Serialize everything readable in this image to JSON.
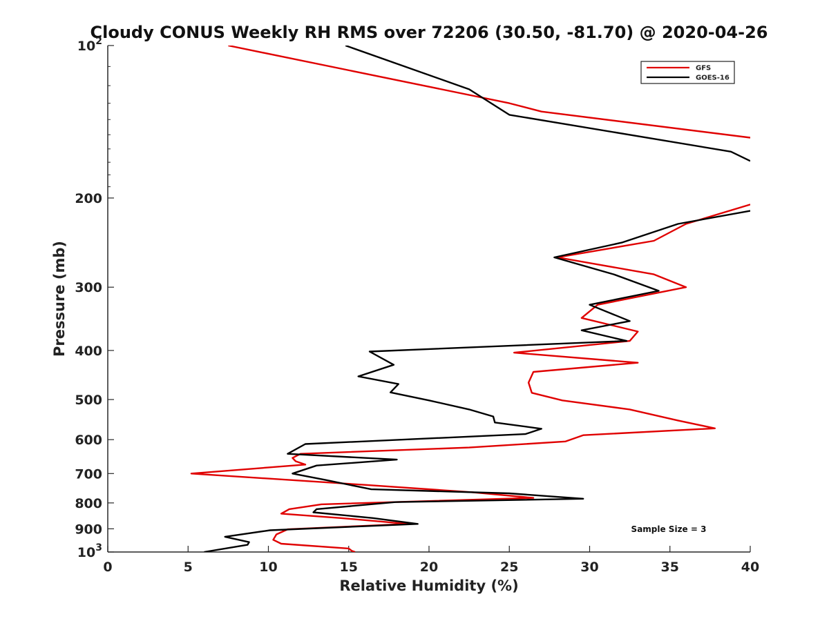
{
  "chart_data": {
    "type": "line",
    "title": "Cloudy CONUS Weekly RH RMS over 72206 (30.50, -81.70) @ 2020-04-26",
    "xlabel": "Relative Humidity (%)",
    "ylabel": "Pressure (mb)",
    "xlim": [
      0,
      40
    ],
    "ylim": [
      1000,
      100
    ],
    "yscale": "log",
    "x_ticks": [
      0,
      5,
      10,
      15,
      20,
      25,
      30,
      35,
      40
    ],
    "x_tick_labels": [
      "0",
      "5",
      "10",
      "15",
      "20",
      "25",
      "30",
      "35",
      "40"
    ],
    "y_ticks": [
      {
        "value": 100,
        "base": "10",
        "exp": "2"
      },
      {
        "value": 200,
        "label": "200"
      },
      {
        "value": 300,
        "label": "300"
      },
      {
        "value": 400,
        "label": "400"
      },
      {
        "value": 500,
        "label": "500"
      },
      {
        "value": 600,
        "label": "600"
      },
      {
        "value": 700,
        "label": "700"
      },
      {
        "value": 800,
        "label": "800"
      },
      {
        "value": 900,
        "label": "900"
      },
      {
        "value": 1000,
        "base": "10",
        "exp": "3"
      }
    ],
    "legend": {
      "position": "top-right"
    },
    "annotation": "Sample Size = 3",
    "series": [
      {
        "name": "GFS",
        "color": "#e00000",
        "points": [
          [
            7.5,
            100
          ],
          [
            25,
            130
          ],
          [
            27,
            135
          ],
          [
            40,
            152
          ],
          [
            null,
            152
          ],
          [
            40,
            206
          ],
          [
            36,
            225
          ],
          [
            34,
            243
          ],
          [
            28,
            262
          ],
          [
            34,
            283
          ],
          [
            36,
            300
          ],
          [
            30.5,
            325
          ],
          [
            29.5,
            345
          ],
          [
            33,
            367
          ],
          [
            32.5,
            383
          ],
          [
            25.3,
            404
          ],
          [
            33,
            423
          ],
          [
            26.5,
            441
          ],
          [
            26.2,
            463
          ],
          [
            26.4,
            485
          ],
          [
            28.3,
            502
          ],
          [
            32.5,
            523
          ],
          [
            35.5,
            550
          ],
          [
            37.8,
            570
          ],
          [
            29.6,
            588
          ],
          [
            28.5,
            605
          ],
          [
            22.5,
            622
          ],
          [
            12,
            640
          ],
          [
            11.5,
            652
          ],
          [
            11.7,
            662
          ],
          [
            12.3,
            672
          ],
          [
            5.2,
            700
          ],
          [
            16,
            737
          ],
          [
            22.7,
            762
          ],
          [
            26.5,
            782
          ],
          [
            13.3,
            805
          ],
          [
            11.3,
            823
          ],
          [
            10.8,
            840
          ],
          [
            14.5,
            857
          ],
          [
            18.7,
            880
          ],
          [
            11.2,
            902
          ],
          [
            10.5,
            923
          ],
          [
            10.3,
            946
          ],
          [
            10.8,
            963
          ],
          [
            15,
            984
          ],
          [
            15.2,
            995
          ],
          [
            15.4,
            1000
          ]
        ]
      },
      {
        "name": "GOES-16",
        "color": "#000000",
        "points": [
          [
            14.8,
            100
          ],
          [
            22.5,
            122
          ],
          [
            25,
            137
          ],
          [
            38.8,
            162
          ],
          [
            40,
            169
          ],
          [
            null,
            169
          ],
          [
            40,
            212
          ],
          [
            35.5,
            225
          ],
          [
            32,
            245
          ],
          [
            27.8,
            262
          ],
          [
            31.5,
            283
          ],
          [
            34.3,
            305
          ],
          [
            30,
            325
          ],
          [
            32.5,
            350
          ],
          [
            29.5,
            365
          ],
          [
            32.3,
            383
          ],
          [
            16.3,
            402
          ],
          [
            17.8,
            427
          ],
          [
            15.6,
            450
          ],
          [
            18.1,
            466
          ],
          [
            17.6,
            484
          ],
          [
            20,
            502
          ],
          [
            22.5,
            523
          ],
          [
            24,
            540
          ],
          [
            24.1,
            555
          ],
          [
            27,
            571
          ],
          [
            26,
            585
          ],
          [
            12.3,
            612
          ],
          [
            11.2,
            640
          ],
          [
            18,
            657
          ],
          [
            13,
            675
          ],
          [
            11.5,
            700
          ],
          [
            13.5,
            720
          ],
          [
            16.4,
            752
          ],
          [
            25,
            766
          ],
          [
            29.6,
            785
          ],
          [
            17.9,
            797
          ],
          [
            13,
            823
          ],
          [
            12.8,
            835
          ],
          [
            16.5,
            857
          ],
          [
            19.3,
            880
          ],
          [
            10.1,
            906
          ],
          [
            7.3,
            933
          ],
          [
            8.8,
            956
          ],
          [
            8.7,
            968
          ],
          [
            6,
            1000
          ]
        ]
      }
    ]
  }
}
